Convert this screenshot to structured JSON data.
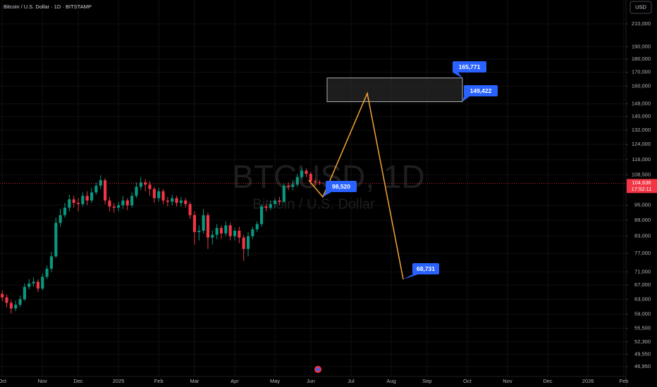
{
  "chart_data": {
    "type": "candlestick",
    "title": "Bitcoin / U.S. Dollar · 1D · BITSTAMP",
    "watermark": "BTCUSD, 1D",
    "watermark_subtitle": "Bitcoin / U.S. Dollar",
    "currency": "USD",
    "log_scale": true,
    "grid": true,
    "up_color": "#089981",
    "down_color": "#f23645",
    "ylim": [
      44950,
      233100
    ],
    "yticks": [
      {
        "value": 210000,
        "label": "210,000"
      },
      {
        "value": 190000,
        "label": "190,000"
      },
      {
        "value": 180000,
        "label": "180,000"
      },
      {
        "value": 170000,
        "label": "170,000"
      },
      {
        "value": 160000,
        "label": "160,000"
      },
      {
        "value": 148000,
        "label": "148,000"
      },
      {
        "value": 140000,
        "label": "140,000"
      },
      {
        "value": 132000,
        "label": "132,000"
      },
      {
        "value": 124000,
        "label": "124,000"
      },
      {
        "value": 116000,
        "label": "116,000"
      },
      {
        "value": 108500,
        "label": "108,500"
      },
      {
        "value": 95000,
        "label": "95,000"
      },
      {
        "value": 89000,
        "label": "89,000"
      },
      {
        "value": 83000,
        "label": "83,000"
      },
      {
        "value": 77000,
        "label": "77,000"
      },
      {
        "value": 71000,
        "label": "71,000"
      },
      {
        "value": 67000,
        "label": "67,000"
      },
      {
        "value": 63000,
        "label": "63,000"
      },
      {
        "value": 59000,
        "label": "59,000"
      },
      {
        "value": 55500,
        "label": "55,500"
      },
      {
        "value": 52300,
        "label": "52,300"
      },
      {
        "value": 49550,
        "label": "49,550"
      },
      {
        "value": 46950,
        "label": "46,950"
      }
    ],
    "categories": [
      "Oct",
      null,
      null,
      null,
      null,
      null,
      null,
      null,
      null,
      "Nov",
      null,
      null,
      null,
      null,
      null,
      null,
      null,
      "Dec",
      null,
      null,
      null,
      null,
      null,
      null,
      null,
      null,
      "2025",
      null,
      null,
      null,
      null,
      null,
      null,
      null,
      null,
      "Feb",
      null,
      null,
      null,
      null,
      null,
      null,
      null,
      "Mar",
      null,
      null,
      null,
      null,
      null,
      null,
      null,
      null,
      "Apr",
      null,
      null,
      null,
      null,
      null,
      null,
      null,
      null,
      "May",
      null,
      null,
      null,
      null,
      null,
      null,
      null,
      "Jun",
      null,
      null,
      null,
      null,
      null,
      null,
      null,
      null,
      "Jul",
      null,
      null,
      null,
      null,
      null,
      null,
      null,
      null,
      "Aug",
      null,
      null,
      null,
      null,
      null,
      null,
      null,
      "Sep",
      null,
      null,
      null,
      null,
      null,
      null,
      null,
      null,
      "Oct",
      null,
      null,
      null,
      null,
      null,
      null,
      null,
      null,
      "Nov",
      null,
      null,
      null,
      null,
      null,
      null,
      null,
      null,
      "Dec",
      null,
      null,
      null,
      null,
      null,
      null,
      null,
      null,
      "2026",
      null,
      null,
      null,
      null,
      null,
      null,
      null,
      "Feb"
    ],
    "open": [
      64500,
      63500,
      62000,
      60500,
      61500,
      63000,
      66500,
      67500,
      68000,
      66000,
      69500,
      72000,
      76000,
      88000,
      91000,
      94000,
      97500,
      96000,
      95500,
      99000,
      97000,
      100500,
      103500,
      106000,
      97000,
      94500,
      94000,
      95000,
      97000,
      95000,
      99000,
      103000,
      105000,
      104000,
      102000,
      98000,
      101000,
      97000,
      96500,
      98000,
      96000,
      97000,
      95500,
      91000,
      84500,
      85000,
      91000,
      82500,
      83500,
      86000,
      84000,
      87000,
      83000,
      85000,
      82500,
      78500,
      83000,
      85500,
      87500,
      94500,
      94000,
      95500,
      97000,
      96500,
      103500,
      103000,
      104000,
      107500,
      110500,
      109000,
      105500,
      105000,
      null,
      null,
      null,
      null,
      null,
      null,
      null,
      null,
      null,
      null,
      null,
      null,
      null,
      null,
      null,
      null,
      null,
      null,
      null,
      null,
      null,
      null,
      null,
      null,
      null,
      null,
      null,
      null,
      null,
      null,
      null,
      null,
      null,
      null,
      null,
      null,
      null,
      null,
      null,
      null,
      null,
      null,
      null,
      null,
      null,
      null,
      null,
      null,
      null,
      null,
      null,
      null,
      null,
      null,
      null,
      null,
      null,
      null,
      null,
      null,
      null,
      null,
      null,
      null,
      null,
      null,
      null,
      null
    ],
    "high": [
      65500,
      64300,
      62800,
      62600,
      64000,
      67500,
      68800,
      69300,
      68700,
      70500,
      73000,
      77500,
      90000,
      93500,
      96000,
      99500,
      99000,
      98000,
      100500,
      101000,
      102500,
      105000,
      108300,
      107000,
      98500,
      96000,
      96500,
      99000,
      98000,
      100500,
      105000,
      107500,
      106500,
      105500,
      103000,
      102500,
      102000,
      98500,
      99500,
      99000,
      98500,
      98000,
      96500,
      92500,
      87000,
      93500,
      92000,
      85000,
      87500,
      87000,
      88500,
      88000,
      86000,
      86500,
      83500,
      84500,
      86500,
      88500,
      95500,
      95500,
      97000,
      98000,
      98500,
      104500,
      105000,
      106000,
      109000,
      112000,
      111500,
      110000,
      106500,
      106000,
      null,
      null,
      null,
      null,
      null,
      null,
      null,
      null,
      null,
      null,
      null,
      null,
      null,
      null,
      null,
      null,
      null,
      null,
      null,
      null,
      null,
      null,
      null,
      null,
      null,
      null,
      null,
      null,
      null,
      null,
      null,
      null,
      null,
      null,
      null,
      null,
      null,
      null,
      null,
      null,
      null,
      null,
      null,
      null,
      null,
      null,
      null,
      null,
      null,
      null,
      null,
      null,
      null,
      null,
      null,
      null,
      null,
      null,
      null,
      null,
      null,
      null,
      null,
      null,
      null,
      null,
      null,
      null
    ],
    "low": [
      62500,
      60800,
      59200,
      59800,
      60900,
      62500,
      65800,
      66600,
      65000,
      65500,
      68800,
      71000,
      75500,
      86500,
      90000,
      92500,
      94000,
      92500,
      94500,
      95000,
      96000,
      99500,
      102000,
      95500,
      92500,
      92000,
      92500,
      93500,
      93000,
      94000,
      98000,
      101500,
      101000,
      99000,
      96000,
      96500,
      95500,
      94500,
      95000,
      94500,
      94500,
      94000,
      89500,
      80000,
      81500,
      84000,
      78500,
      80000,
      82000,
      82000,
      83000,
      81500,
      81500,
      80500,
      74500,
      76000,
      82000,
      84500,
      86500,
      92500,
      93000,
      94000,
      95000,
      96000,
      101500,
      101500,
      103000,
      106500,
      107500,
      104000,
      103500,
      103800,
      null,
      null,
      null,
      null,
      null,
      null,
      null,
      null,
      null,
      null,
      null,
      null,
      null,
      null,
      null,
      null,
      null,
      null,
      null,
      null,
      null,
      null,
      null,
      null,
      null,
      null,
      null,
      null,
      null,
      null,
      null,
      null,
      null,
      null,
      null,
      null,
      null,
      null,
      null,
      null,
      null,
      null,
      null,
      null,
      null,
      null,
      null,
      null,
      null,
      null,
      null,
      null,
      null,
      null,
      null,
      null,
      null,
      null,
      null,
      null,
      null,
      null,
      null,
      null,
      null,
      null,
      null,
      null
    ],
    "close": [
      63500,
      62000,
      60500,
      61500,
      63000,
      66500,
      67500,
      68000,
      66000,
      69500,
      72000,
      76000,
      88000,
      91000,
      94000,
      97500,
      96000,
      95500,
      99000,
      97000,
      100500,
      103500,
      106000,
      97000,
      94500,
      94000,
      95000,
      97000,
      95000,
      99000,
      103000,
      105000,
      104000,
      102000,
      98000,
      101000,
      97000,
      96500,
      98000,
      96000,
      97000,
      95500,
      91000,
      84500,
      85000,
      91000,
      82500,
      83500,
      86000,
      84000,
      87000,
      83000,
      85000,
      82500,
      78500,
      83000,
      85500,
      87500,
      94500,
      94000,
      95500,
      97000,
      96500,
      103500,
      103000,
      104000,
      107500,
      110500,
      109000,
      105500,
      105000,
      104636,
      null,
      null,
      null,
      null,
      null,
      null,
      null,
      null,
      null,
      null,
      null,
      null,
      null,
      null,
      null,
      null,
      null,
      null,
      null,
      null,
      null,
      null,
      null,
      null,
      null,
      null,
      null,
      null,
      null,
      null,
      null,
      null,
      null,
      null,
      null,
      null,
      null,
      null,
      null,
      null,
      null,
      null,
      null,
      null,
      null,
      null,
      null,
      null,
      null,
      null,
      null,
      null,
      null,
      null,
      null,
      null,
      null,
      null,
      null,
      null,
      null,
      null,
      null,
      null,
      null,
      null,
      null,
      null
    ],
    "last_price": 104636,
    "last_price_label": "104,636",
    "countdown": "17:52:11",
    "last_price_color": "#f23645",
    "zone": {
      "values": [
        149422,
        165771
      ],
      "value_labels": [
        "149,422",
        "165,771"
      ],
      "color": "#2a2a2a"
    },
    "projection": {
      "values": [
        106000,
        98520,
        155000,
        68731
      ],
      "value_labels": [
        null,
        "98,520",
        null,
        "68,731"
      ],
      "color": "#f7a531"
    },
    "label_color": "#2962ff"
  }
}
